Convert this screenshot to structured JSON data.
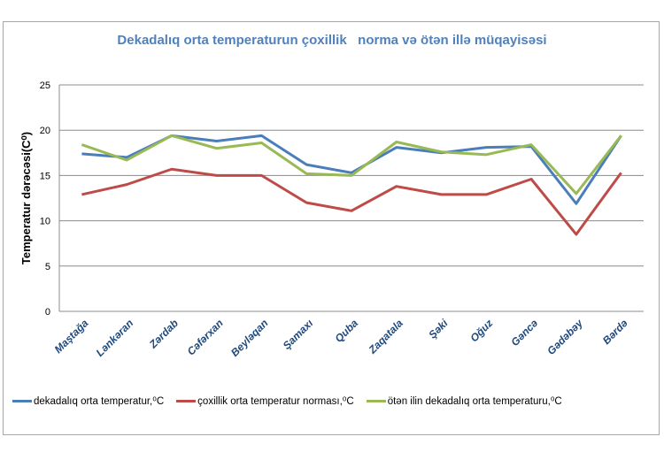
{
  "chart_data": {
    "type": "line",
    "title": "Dekadalıq orta temperaturun çoxillik   norma və ötən illə müqayisəsi",
    "xlabel": "",
    "ylabel": "Temperatur dərəcəsi(C⁰)",
    "ylim": [
      0,
      25
    ],
    "yticks": [
      "0",
      "5",
      "10",
      "15",
      "20",
      "25"
    ],
    "grid": true,
    "legend": "bottom",
    "categories": [
      "Maştağa",
      "Lənkəran",
      "Zərdab",
      "Cəfərxan",
      "Beyləqan",
      "Şamaxı",
      "Quba",
      "Zaqatala",
      "Şəki",
      "Oğuz",
      "Gəncə",
      "Gədəbəy",
      "Bərdə"
    ],
    "series": [
      {
        "name": "dekadalıq orta temperatur,⁰C",
        "color": "#4a7ebb",
        "values": [
          17.4,
          17.0,
          19.4,
          18.8,
          19.4,
          16.2,
          15.3,
          18.1,
          17.5,
          18.1,
          18.2,
          11.9,
          19.4
        ]
      },
      {
        "name": "çoxillik orta temperatur norması,⁰C",
        "color": "#be4b48",
        "values": [
          12.9,
          14.0,
          15.7,
          15.0,
          15.0,
          12.0,
          11.1,
          13.8,
          12.9,
          12.9,
          14.6,
          8.5,
          15.3
        ]
      },
      {
        "name": "ötən ilin dekadalıq orta temperaturu,⁰C",
        "color": "#98b954",
        "values": [
          18.4,
          16.7,
          19.4,
          18.0,
          18.6,
          15.2,
          15.0,
          18.7,
          17.6,
          17.3,
          18.4,
          13.0,
          19.4
        ]
      }
    ]
  }
}
